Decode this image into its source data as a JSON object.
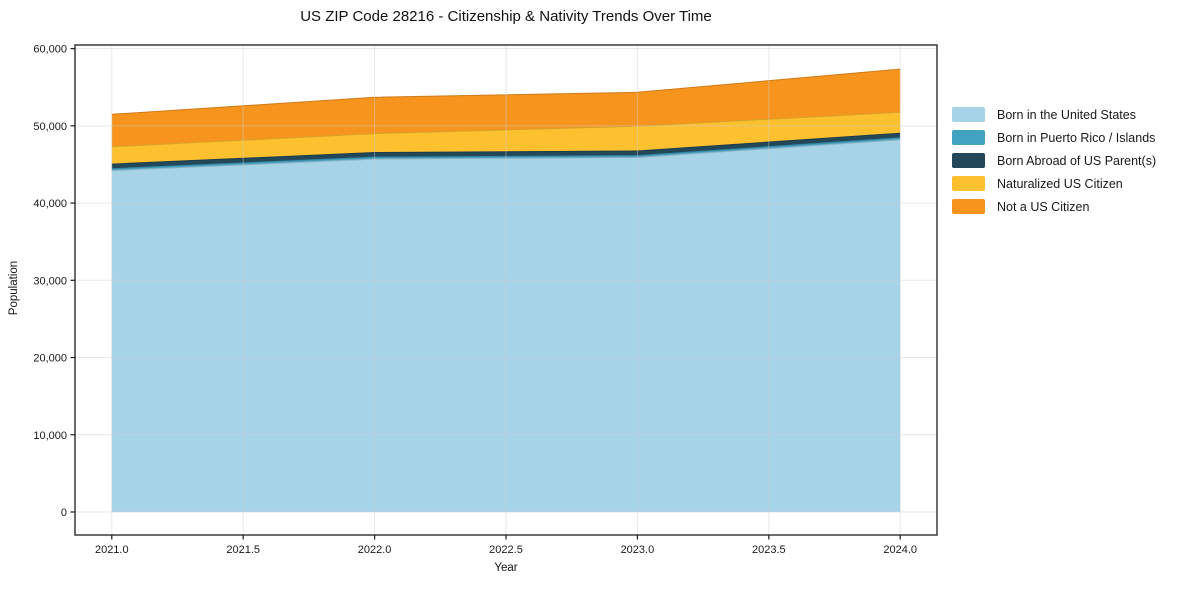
{
  "chart_data": {
    "type": "area",
    "stacked": true,
    "title": "US ZIP Code 28216 - Citizenship & Nativity Trends Over Time",
    "xlabel": "Year",
    "ylabel": "Population",
    "x": [
      2021,
      2022,
      2023,
      2024
    ],
    "series": [
      {
        "name": "Born in the United States",
        "color": "#a7d3e8",
        "values": [
          44200,
          45700,
          45900,
          48200
        ]
      },
      {
        "name": "Born in Puerto Rico / Islands",
        "color": "#42a2c2",
        "values": [
          250,
          250,
          250,
          250
        ]
      },
      {
        "name": "Born Abroad of US Parent(s)",
        "color": "#22485a",
        "values": [
          600,
          600,
          600,
          600
        ]
      },
      {
        "name": "Naturalized US Citizen",
        "color": "#fdc02f",
        "values": [
          2250,
          2450,
          3200,
          2700
        ]
      },
      {
        "name": "Not a US Citizen",
        "color": "#f7941e",
        "values": [
          4200,
          4700,
          4400,
          5600
        ]
      }
    ],
    "x_ticks": [
      2021.0,
      2021.5,
      2022.0,
      2022.5,
      2023.0,
      2023.5,
      2024.0
    ],
    "x_tick_labels": [
      "2021.0",
      "2021.5",
      "2022.0",
      "2022.5",
      "2023.0",
      "2023.5",
      "2024.0"
    ],
    "y_ticks": [
      0,
      10000,
      20000,
      30000,
      40000,
      50000,
      60000
    ],
    "y_tick_labels": [
      "0",
      "10,000",
      "20,000",
      "30,000",
      "40,000",
      "50,000",
      "60,000"
    ],
    "xlim": [
      2020.86,
      2024.14
    ],
    "ylim": [
      -2980,
      60470
    ],
    "grid": true,
    "grid_color": "#cfcfcf",
    "spine_color": "#1c1c1c",
    "background": "#ffffff",
    "legend_position": "right"
  }
}
